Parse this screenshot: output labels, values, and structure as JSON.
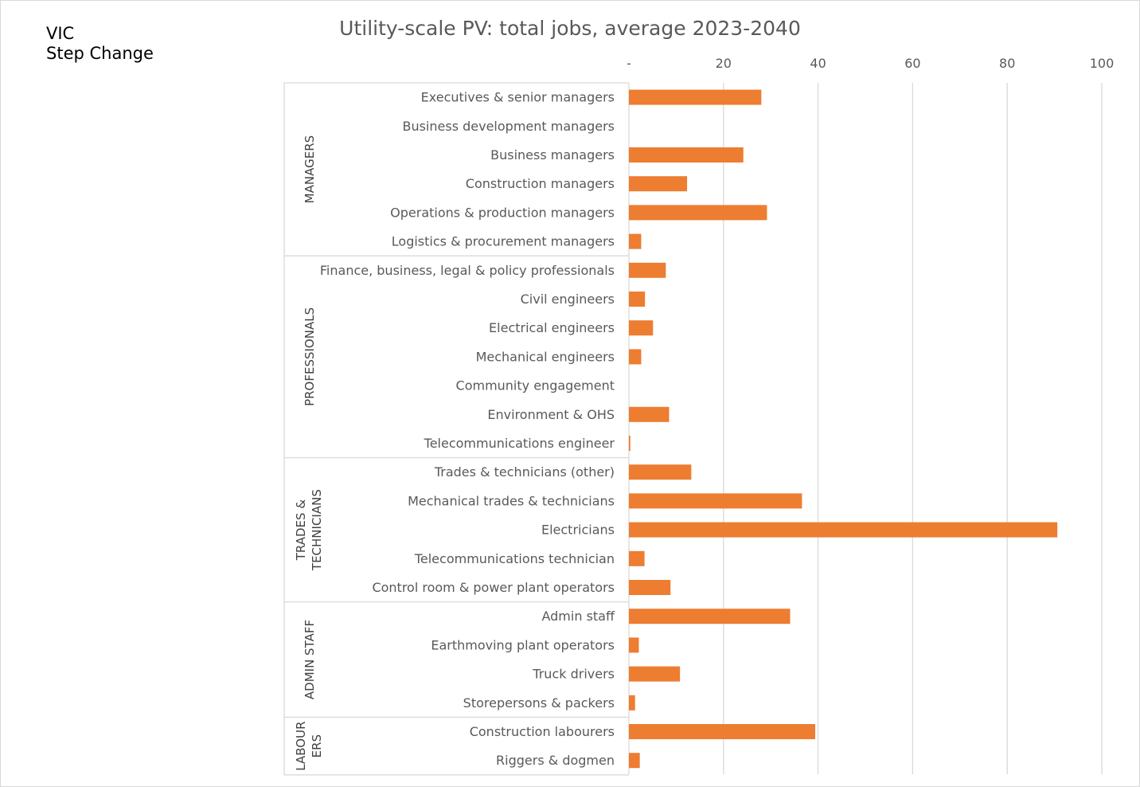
{
  "corner_label": {
    "line1": "VIC",
    "line2": "Step Change"
  },
  "colors": {
    "bar": "#ED7D31",
    "grid": "#d9d9d9",
    "text": "#595959",
    "group_text": "#404040"
  },
  "chart_data": {
    "type": "bar",
    "orientation": "horizontal",
    "title": "Utility-scale PV: total jobs, average 2023-2040",
    "xlabel": "",
    "ylabel": "",
    "xlim": [
      0,
      100
    ],
    "x_ticks": [
      0,
      20,
      40,
      60,
      80,
      100
    ],
    "x_tick_labels": [
      "-",
      "20",
      "40",
      "60",
      "80",
      "100"
    ],
    "grid": true,
    "legend": "none",
    "groups": [
      {
        "label_lines": [
          "MANAGERS"
        ],
        "start": 0,
        "count": 6
      },
      {
        "label_lines": [
          "PROFESSIONALS"
        ],
        "start": 6,
        "count": 7
      },
      {
        "label_lines": [
          "TRADES &",
          "TECHNICIANS"
        ],
        "start": 13,
        "count": 5
      },
      {
        "label_lines": [
          "ADMIN STAFF"
        ],
        "start": 18,
        "count": 4
      },
      {
        "label_lines": [
          "LABOUR",
          "ERS"
        ],
        "start": 22,
        "count": 2
      }
    ],
    "categories": [
      "Executives & senior managers",
      "Business development managers",
      "Business managers",
      "Construction managers",
      "Operations & production managers",
      "Logistics & procurement managers",
      "Finance, business, legal & policy professionals",
      "Civil engineers",
      "Electrical engineers",
      "Mechanical engineers",
      "Community engagement",
      "Environment & OHS",
      "Telecommunications engineer",
      "Trades & technicians (other)",
      "Mechanical trades & technicians",
      "Electricians",
      "Telecommunications technician",
      "Control room & power plant operators",
      "Admin staff",
      "Earthmoving plant operators",
      "Truck drivers",
      "Storepersons & packers",
      "Construction labourers",
      "Riggers & dogmen"
    ],
    "values": [
      28.0,
      0,
      24.2,
      12.3,
      29.2,
      2.6,
      7.8,
      3.4,
      5.1,
      2.6,
      0,
      8.5,
      0.3,
      13.2,
      36.6,
      90.6,
      3.3,
      8.8,
      34.1,
      2.1,
      10.8,
      1.3,
      39.4,
      2.3
    ]
  }
}
